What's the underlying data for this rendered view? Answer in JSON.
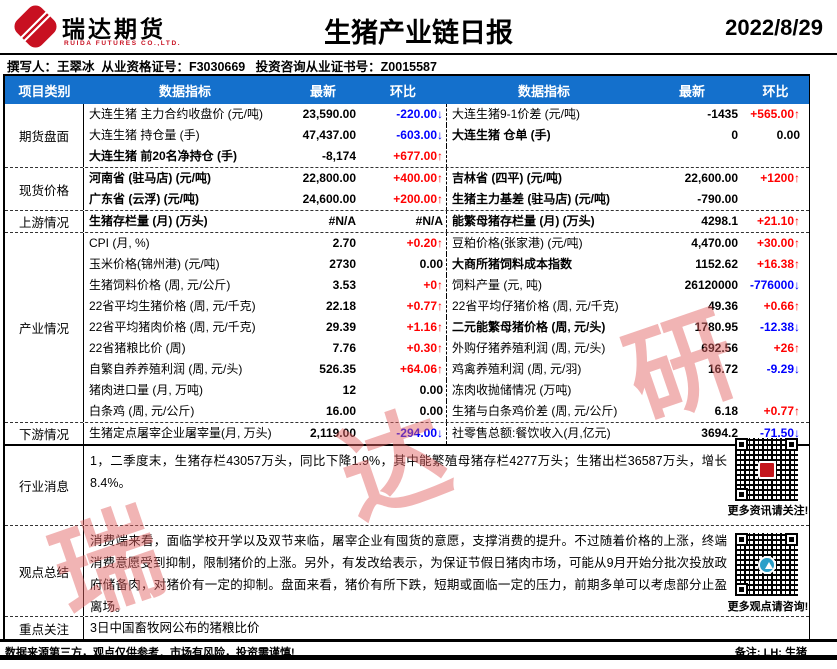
{
  "header": {
    "brand": "瑞达期货",
    "brand_sub": "RUIDA FUTURES CO.,LTD.",
    "title": "生猪产业链日报",
    "date": "2022/8/29"
  },
  "byline": {
    "text": "撰写人：王翠冰  从业资格证号：F3030669   投资咨询从业证书号：Z0015587"
  },
  "colors": {
    "header_bg": "#1470cc",
    "up_red": "#ff0000",
    "down_blue": "#0000ff",
    "brand_red": "#c81021"
  },
  "table": {
    "headers": [
      "项目类别",
      "数据指标",
      "最新",
      "环比",
      "数据指标",
      "最新",
      "环比"
    ],
    "sections": [
      {
        "category": "期货盘面",
        "rows": [
          {
            "l_label": "大连生猪 主力合约收盘价 (元/吨)",
            "l_bold": false,
            "l_latest": "23,590.00",
            "l_chg": "-220.00↓",
            "l_dir": "down",
            "r_label": "大连生猪9-1价差 (元/吨)",
            "r_bold": false,
            "r_latest": "-1435",
            "r_chg": "+565.00↑",
            "r_dir": "up"
          },
          {
            "l_label": "大连生猪 持仓量 (手)",
            "l_bold": false,
            "l_latest": "47,437.00",
            "l_chg": "-603.00↓",
            "l_dir": "down",
            "r_label": "大连生猪 仓单 (手)",
            "r_bold": true,
            "r_latest": "0",
            "r_chg": "0.00",
            "r_dir": "flat"
          },
          {
            "l_label": "大连生猪 前20名净持仓 (手)",
            "l_bold": true,
            "l_latest": "-8,174",
            "l_chg": "+677.00↑",
            "l_dir": "up",
            "r_label": "",
            "r_bold": false,
            "r_latest": "",
            "r_chg": "",
            "r_dir": "flat"
          }
        ]
      },
      {
        "category": "现货价格",
        "rows": [
          {
            "l_label": "河南省 (驻马店)  (元/吨)",
            "l_bold": true,
            "l_latest": "22,800.00",
            "l_chg": "+400.00↑",
            "l_dir": "up",
            "r_label": "吉林省 (四平)  (元/吨)",
            "r_bold": true,
            "r_latest": "22,600.00",
            "r_chg": "+1200↑",
            "r_dir": "up"
          },
          {
            "l_label": "广东省 (云浮)  (元/吨)",
            "l_bold": true,
            "l_latest": "24,600.00",
            "l_chg": "+200.00↑",
            "l_dir": "up",
            "r_label": "生猪主力基差 (驻马店) (元/吨)",
            "r_bold": true,
            "r_latest": "-790.00",
            "r_chg": "",
            "r_dir": "flat"
          }
        ]
      },
      {
        "category": "上游情况",
        "rows": [
          {
            "l_label": "生猪存栏量 (月)  (万头)",
            "l_bold": true,
            "l_latest": "#N/A",
            "l_chg": "#N/A",
            "l_dir": "flat",
            "r_label": "能繁母猪存栏量 (月)  (万头)",
            "r_bold": true,
            "r_latest": "4298.1",
            "r_chg": "+21.10↑",
            "r_dir": "up"
          }
        ]
      },
      {
        "category": "产业情况",
        "rows": [
          {
            "l_label": "CPI (月, %)",
            "l_bold": false,
            "l_latest": "2.70",
            "l_chg": "+0.20↑",
            "l_dir": "up",
            "r_label": "豆粕价格(张家港) (元/吨)",
            "r_bold": false,
            "r_latest": "4,470.00",
            "r_chg": "+30.00↑",
            "r_dir": "up"
          },
          {
            "l_label": "玉米价格(锦州港)  (元/吨)",
            "l_bold": false,
            "l_latest": "2730",
            "l_chg": "0.00",
            "l_dir": "flat",
            "r_label": "大商所猪饲料成本指数",
            "r_bold": true,
            "r_latest": "1152.62",
            "r_chg": "+16.38↑",
            "r_dir": "up"
          },
          {
            "l_label": "生猪饲料价格 (周, 元/公斤)",
            "l_bold": false,
            "l_latest": "3.53",
            "l_chg": "+0↑",
            "l_dir": "up",
            "r_label": "饲料产量 (元, 吨)",
            "r_bold": false,
            "r_latest": "26120000",
            "r_chg": "-776000↓",
            "r_dir": "down"
          },
          {
            "l_label": "22省平均生猪价格 (周, 元/千克)",
            "l_bold": false,
            "l_latest": "22.18",
            "l_chg": "+0.77↑",
            "l_dir": "up",
            "r_label": "22省平均仔猪价格 (周, 元/千克)",
            "r_bold": false,
            "r_latest": "49.36",
            "r_chg": "+0.66↑",
            "r_dir": "up"
          },
          {
            "l_label": "22省平均猪肉价格 (周, 元/千克)",
            "l_bold": false,
            "l_latest": "29.39",
            "l_chg": "+1.16↑",
            "l_dir": "up",
            "r_label": "二元能繁母猪价格 (周, 元/头)",
            "r_bold": true,
            "r_latest": "1780.95",
            "r_chg": "-12.38↓",
            "r_dir": "down"
          },
          {
            "l_label": "22省猪粮比价 (周)",
            "l_bold": false,
            "l_latest": "7.76",
            "l_chg": "+0.30↑",
            "l_dir": "up",
            "r_label": "外购仔猪养殖利润 (周, 元/头)",
            "r_bold": false,
            "r_latest": "692.56",
            "r_chg": "+26↑",
            "r_dir": "up"
          },
          {
            "l_label": "自繁自养养殖利润 (周, 元/头)",
            "l_bold": false,
            "l_latest": "526.35",
            "l_chg": "+64.06↑",
            "l_dir": "up",
            "r_label": "鸡禽养殖利润 (周, 元/羽)",
            "r_bold": false,
            "r_latest": "16.72",
            "r_chg": "-9.29↓",
            "r_dir": "down"
          },
          {
            "l_label": "猪肉进口量 (月, 万吨)",
            "l_bold": false,
            "l_latest": "12",
            "l_chg": "0.00",
            "l_dir": "flat",
            "r_label": "冻肉收抛储情况 (万吨)",
            "r_bold": false,
            "r_latest": "",
            "r_chg": "",
            "r_dir": "flat"
          },
          {
            "l_label": "白条鸡 (周, 元/公斤)",
            "l_bold": false,
            "l_latest": "16.00",
            "l_chg": "0.00",
            "l_dir": "flat",
            "r_label": "生猪与白条鸡价差 (周, 元/公斤)",
            "r_bold": false,
            "r_latest": "6.18",
            "r_chg": "+0.77↑",
            "r_dir": "up"
          }
        ]
      },
      {
        "category": "下游情况",
        "rows": [
          {
            "l_label": "生猪定点屠宰企业屠宰量(月, 万头)",
            "l_bold": false,
            "l_latest": "2,119.00",
            "l_chg": "-294.00↓",
            "l_dir": "down",
            "r_label": "社零售总额:餐饮收入(月,亿元)",
            "r_bold": false,
            "r_latest": "3694.2",
            "r_chg": "-71.50↓",
            "r_dir": "down"
          }
        ]
      }
    ]
  },
  "news": {
    "category": "行业消息",
    "text": "1，二季度末，生猪存栏43057万头，同比下降1.9%，其中能繁殖母猪存栏4277万头；生猪出栏36587万头，增长8.4%。",
    "qr_caption": "更多资讯请关注!"
  },
  "summary": {
    "category": "观点总结",
    "text": "消费端来看，面临学校开学以及双节来临，屠宰企业有囤货的意愿，支撑消费的提升。不过随着价格的上涨，终端消费意愿受到抑制，限制猪价的上涨。另外，有发改给表示，为保证节假日猪肉市场，可能从9月开始分批次投放政府储备肉，对猪价有一定的抑制。盘面来看，猪价有所下跌，短期或面临一定的压力，前期多单可以考虑部分止盈离场。",
    "qr_caption": "更多观点请咨询!"
  },
  "focus": {
    "category": "重点关注",
    "text": "3日中国畜牧网公布的猪粮比价"
  },
  "watermark": {
    "text": "瑞达研究"
  },
  "footer": {
    "disclaimer": "数据来源第三方，观点仅供参考．市场有风险，投资需谨慎!",
    "note": "备注: LH: 生猪"
  }
}
